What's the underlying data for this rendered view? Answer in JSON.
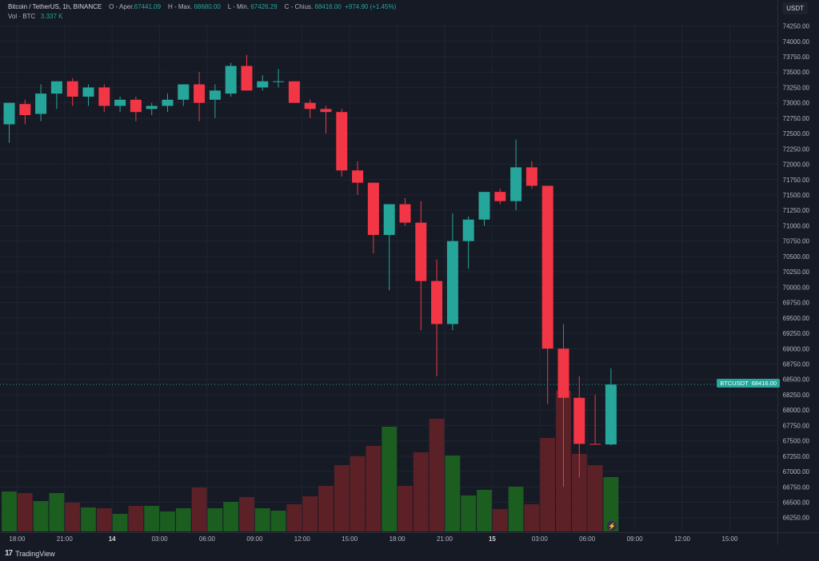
{
  "legend": {
    "title": "Bitcoin / TetherUS, 1h, BINANCE",
    "open_label": "O - Aper.",
    "open_value": "67441.09",
    "high_label": "H - Max.",
    "high_value": "68680.00",
    "low_label": "L - Min.",
    "low_value": "67426.29",
    "close_label": "C - Chius.",
    "close_value": "68416.00",
    "change": "+974.90 (+1.45%)",
    "vol_label": "Vol · BTC",
    "vol_value": "3.337 K"
  },
  "unit_label": "USDT",
  "price_tag": {
    "symbol": "BTCUSDT",
    "value": "68416.00"
  },
  "branding": "TradingView",
  "colors": {
    "up": "#26a69a",
    "down": "#f23645",
    "vol_up": "#1b5e20",
    "vol_down": "#5b2126",
    "grid": "#1f2433",
    "background": "#161a25"
  },
  "icons": {
    "alert": "bolt-icon",
    "logo": "tradingview-logo-icon"
  },
  "chart_data": {
    "type": "candlestick",
    "title": "Bitcoin / TetherUS, 1h, BINANCE",
    "interval": "1h",
    "y_ticks": [
      66250,
      66500,
      66750,
      67000,
      67250,
      67500,
      67750,
      68000,
      68250,
      68500,
      68750,
      69000,
      69250,
      69500,
      69750,
      70000,
      70250,
      70500,
      70750,
      71000,
      71250,
      71500,
      71750,
      72000,
      72250,
      72500,
      72750,
      73000,
      73250,
      73500,
      73750,
      74000,
      74250
    ],
    "ylim": [
      66100,
      74400
    ],
    "x_ticks": [
      {
        "i": 0.5,
        "label": "18:00"
      },
      {
        "i": 3.5,
        "label": "21:00"
      },
      {
        "i": 6.5,
        "label": "14"
      },
      {
        "i": 9.5,
        "label": "03:00"
      },
      {
        "i": 12.5,
        "label": "06:00"
      },
      {
        "i": 15.5,
        "label": "09:00"
      },
      {
        "i": 18.5,
        "label": "12:00"
      },
      {
        "i": 21.5,
        "label": "15:00"
      },
      {
        "i": 24.5,
        "label": "18:00"
      },
      {
        "i": 27.5,
        "label": "21:00"
      },
      {
        "i": 30.5,
        "label": "15"
      },
      {
        "i": 33.5,
        "label": "03:00"
      },
      {
        "i": 36.5,
        "label": "06:00"
      },
      {
        "i": 39.5,
        "label": "09:00"
      },
      {
        "i": 42.5,
        "label": "12:00"
      },
      {
        "i": 45.5,
        "label": "15:00"
      }
    ],
    "candles": [
      {
        "o": 72650,
        "h": 73000,
        "l": 72350,
        "c": 73000
      },
      {
        "o": 72980,
        "h": 73050,
        "l": 72650,
        "c": 72800
      },
      {
        "o": 72820,
        "h": 73300,
        "l": 72700,
        "c": 73150
      },
      {
        "o": 73150,
        "h": 73350,
        "l": 72900,
        "c": 73350
      },
      {
        "o": 73350,
        "h": 73400,
        "l": 72950,
        "c": 73100
      },
      {
        "o": 73100,
        "h": 73300,
        "l": 72950,
        "c": 73250
      },
      {
        "o": 73250,
        "h": 73300,
        "l": 72850,
        "c": 72950
      },
      {
        "o": 72950,
        "h": 73100,
        "l": 72850,
        "c": 73050
      },
      {
        "o": 73050,
        "h": 73100,
        "l": 72700,
        "c": 72850
      },
      {
        "o": 72900,
        "h": 73000,
        "l": 72800,
        "c": 72950
      },
      {
        "o": 72950,
        "h": 73150,
        "l": 72850,
        "c": 73050
      },
      {
        "o": 73050,
        "h": 73300,
        "l": 72950,
        "c": 73300
      },
      {
        "o": 73300,
        "h": 73500,
        "l": 72700,
        "c": 73000
      },
      {
        "o": 73050,
        "h": 73300,
        "l": 72750,
        "c": 73200
      },
      {
        "o": 73150,
        "h": 73650,
        "l": 73100,
        "c": 73600
      },
      {
        "o": 73600,
        "h": 73780,
        "l": 73200,
        "c": 73200
      },
      {
        "o": 73250,
        "h": 73450,
        "l": 73200,
        "c": 73350
      },
      {
        "o": 73350,
        "h": 73550,
        "l": 73250,
        "c": 73350
      },
      {
        "o": 73350,
        "h": 73350,
        "l": 73000,
        "c": 73000
      },
      {
        "o": 73000,
        "h": 73050,
        "l": 72750,
        "c": 72900
      },
      {
        "o": 72900,
        "h": 72950,
        "l": 72500,
        "c": 72850
      },
      {
        "o": 72850,
        "h": 72900,
        "l": 71800,
        "c": 71900
      },
      {
        "o": 71900,
        "h": 72050,
        "l": 71500,
        "c": 71700
      },
      {
        "o": 71700,
        "h": 71700,
        "l": 70550,
        "c": 70850
      },
      {
        "o": 70850,
        "h": 71350,
        "l": 69950,
        "c": 71350
      },
      {
        "o": 71350,
        "h": 71450,
        "l": 71000,
        "c": 71050
      },
      {
        "o": 71050,
        "h": 71400,
        "l": 69300,
        "c": 70100
      },
      {
        "o": 70100,
        "h": 70450,
        "l": 68550,
        "c": 69400
      },
      {
        "o": 69400,
        "h": 71200,
        "l": 69300,
        "c": 70750
      },
      {
        "o": 70750,
        "h": 71150,
        "l": 70300,
        "c": 71100
      },
      {
        "o": 71100,
        "h": 71550,
        "l": 71000,
        "c": 71550
      },
      {
        "o": 71550,
        "h": 71600,
        "l": 71350,
        "c": 71400
      },
      {
        "o": 71400,
        "h": 72400,
        "l": 71250,
        "c": 71950
      },
      {
        "o": 71950,
        "h": 72050,
        "l": 71600,
        "c": 71650
      },
      {
        "o": 71650,
        "h": 71650,
        "l": 68100,
        "c": 69000
      },
      {
        "o": 69000,
        "h": 69400,
        "l": 66750,
        "c": 68200
      },
      {
        "o": 68200,
        "h": 68550,
        "l": 66900,
        "c": 67450
      },
      {
        "o": 67450,
        "h": 68250,
        "l": 67450,
        "c": 67441
      },
      {
        "o": 67441,
        "h": 68680,
        "l": 67426,
        "c": 68416
      }
    ],
    "volume": [
      {
        "v": 0.5,
        "dir": "up"
      },
      {
        "v": 0.48,
        "dir": "down"
      },
      {
        "v": 0.38,
        "dir": "up"
      },
      {
        "v": 0.48,
        "dir": "up"
      },
      {
        "v": 0.36,
        "dir": "down"
      },
      {
        "v": 0.3,
        "dir": "up"
      },
      {
        "v": 0.29,
        "dir": "down"
      },
      {
        "v": 0.22,
        "dir": "up"
      },
      {
        "v": 0.32,
        "dir": "down"
      },
      {
        "v": 0.32,
        "dir": "up"
      },
      {
        "v": 0.25,
        "dir": "up"
      },
      {
        "v": 0.29,
        "dir": "up"
      },
      {
        "v": 0.55,
        "dir": "down"
      },
      {
        "v": 0.29,
        "dir": "up"
      },
      {
        "v": 0.37,
        "dir": "up"
      },
      {
        "v": 0.43,
        "dir": "down"
      },
      {
        "v": 0.29,
        "dir": "up"
      },
      {
        "v": 0.26,
        "dir": "up"
      },
      {
        "v": 0.34,
        "dir": "down"
      },
      {
        "v": 0.44,
        "dir": "down"
      },
      {
        "v": 0.57,
        "dir": "down"
      },
      {
        "v": 0.83,
        "dir": "down"
      },
      {
        "v": 0.94,
        "dir": "down"
      },
      {
        "v": 1.07,
        "dir": "down"
      },
      {
        "v": 1.31,
        "dir": "up"
      },
      {
        "v": 0.57,
        "dir": "down"
      },
      {
        "v": 0.99,
        "dir": "down"
      },
      {
        "v": 1.41,
        "dir": "down"
      },
      {
        "v": 0.95,
        "dir": "up"
      },
      {
        "v": 0.45,
        "dir": "up"
      },
      {
        "v": 0.52,
        "dir": "up"
      },
      {
        "v": 0.28,
        "dir": "down"
      },
      {
        "v": 0.56,
        "dir": "up"
      },
      {
        "v": 0.34,
        "dir": "down"
      },
      {
        "v": 1.17,
        "dir": "down"
      },
      {
        "v": 1.76,
        "dir": "down"
      },
      {
        "v": 0.97,
        "dir": "down"
      },
      {
        "v": 0.83,
        "dir": "down"
      },
      {
        "v": 0.68,
        "dir": "up"
      }
    ],
    "last_price": 68416.0
  }
}
